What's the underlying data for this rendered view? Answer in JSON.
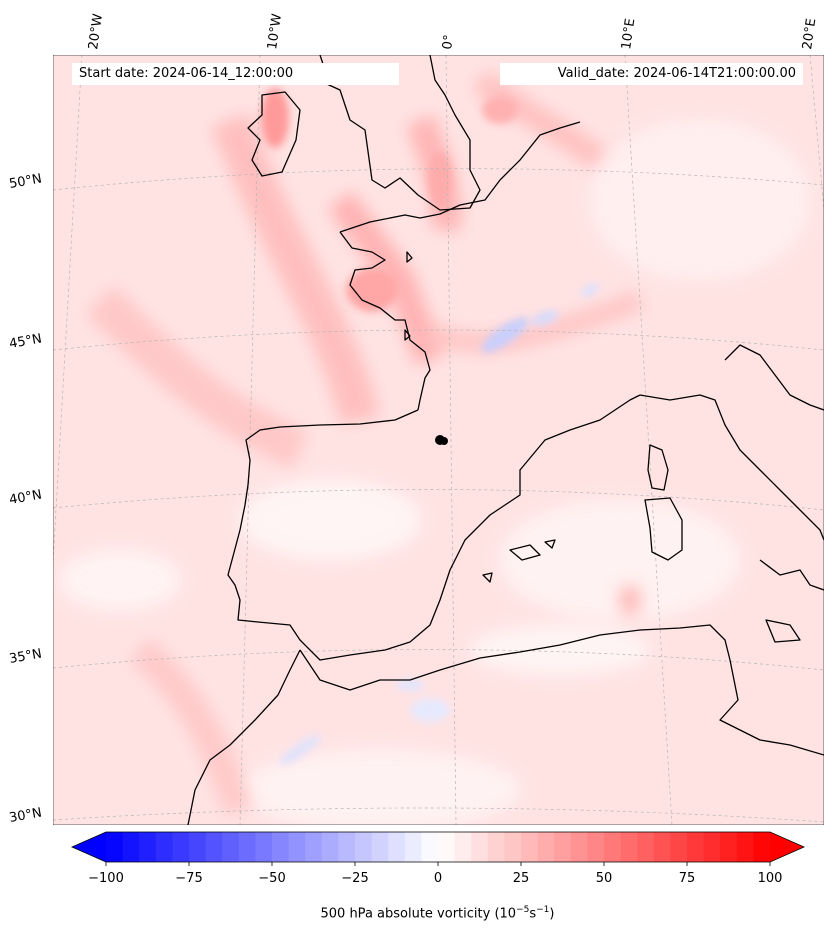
{
  "header": {
    "start_date": "Start date: 2024-06-14_12:00:00",
    "valid_date": "Valid_date: 2024-06-14T21:00:00.00"
  },
  "map": {
    "lon_labels": [
      "20°W",
      "10°W",
      "0°",
      "10°E",
      "20°E"
    ],
    "lat_labels": [
      "50°N",
      "45°N",
      "40°N",
      "35°N",
      "30°N"
    ],
    "gridlines": "dashed-grey",
    "marker": "black-dot"
  },
  "colorbar": {
    "min": -100,
    "max": 100,
    "ticks": [
      "−100",
      "−75",
      "−50",
      "−25",
      "0",
      "25",
      "50",
      "75",
      "100"
    ],
    "label_prefix": "500 hPa absolute vorticity (10",
    "label_exp1": "−5",
    "label_mid": "s",
    "label_exp2": "−1",
    "label_suffix": ")",
    "low_color": "#0000ff",
    "high_color": "#ff0000"
  }
}
